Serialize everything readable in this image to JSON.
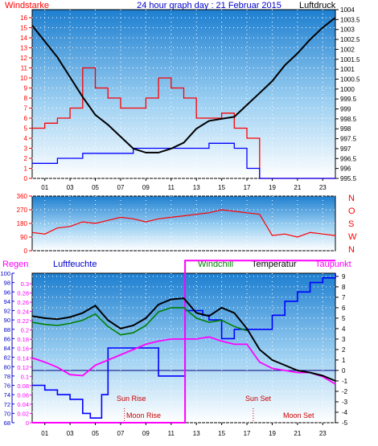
{
  "title": "24 hour graph day : 21 Februar 2015",
  "colors": {
    "wind": "#ff0000",
    "gust": "#ff0000",
    "windavg": "#0000ff",
    "pressure": "#000000",
    "humidity": "#0000ff",
    "windchill": "#008000",
    "temperature": "#000000",
    "dewpoint": "#ff00ff",
    "axisBlue": "#0000cc",
    "axisRed": "#ff0000",
    "pink": "#ff00ff"
  },
  "x_ticks": [
    "01",
    "03",
    "05",
    "07",
    "09",
    "11",
    "13",
    "15",
    "17",
    "19",
    "21",
    "23"
  ],
  "chart_data": [
    {
      "type": "line",
      "name": "wind-pressure",
      "left_label": "Windstarke",
      "right_label": "Luftdruck",
      "left_ticks": [
        "0",
        "1",
        "2",
        "3",
        "4",
        "5",
        "6",
        "7",
        "8",
        "9",
        "10",
        "11",
        "12",
        "13",
        "14",
        "15",
        "16"
      ],
      "right_ticks": [
        "995.5",
        "996",
        "996.5",
        "997",
        "997.5",
        "998",
        "998.5",
        "999",
        "999.5",
        "1000",
        "1000.5",
        "1001",
        "1001.5",
        "1002",
        "1002.5",
        "1003",
        "1003.5",
        "1004"
      ],
      "ylim_left": [
        0,
        16.8
      ],
      "ylim_right": [
        995.5,
        1004
      ],
      "pressure": {
        "x": [
          0,
          1,
          2,
          3,
          4,
          5,
          6,
          7,
          8,
          9,
          10,
          11,
          12,
          13,
          14,
          15,
          16,
          17,
          18,
          19,
          20,
          21,
          22,
          23,
          24
        ],
        "y": [
          1003.2,
          1002.4,
          1001.6,
          1000.6,
          999.6,
          998.7,
          998.2,
          997.6,
          997,
          996.8,
          996.8,
          997,
          997.3,
          998,
          998.4,
          998.5,
          998.6,
          999.2,
          999.8,
          1000.4,
          1001.2,
          1001.8,
          1002.5,
          1003.1,
          1003.6
        ]
      },
      "wind_avg": {
        "x": [
          0,
          2,
          4,
          6,
          8,
          10,
          12,
          13,
          14,
          16,
          17,
          18,
          24
        ],
        "y": [
          1.5,
          2,
          2.5,
          2.5,
          3,
          3,
          3,
          3,
          3.5,
          3,
          1,
          0,
          0
        ]
      },
      "gust": {
        "x": [
          0,
          1,
          2,
          3,
          4,
          5,
          6,
          7,
          8,
          9,
          10,
          11,
          12,
          13,
          14,
          15,
          16,
          17,
          18,
          24
        ],
        "y": [
          5,
          5.5,
          6,
          7,
          11,
          9,
          8,
          7,
          7,
          8,
          10,
          9,
          8,
          6,
          6,
          6.5,
          5,
          4,
          0,
          0
        ]
      }
    },
    {
      "type": "scatter",
      "name": "wind-direction",
      "left_ticks": [
        "0",
        "90",
        "180",
        "270",
        "360"
      ],
      "right_letters": [
        "N",
        "W",
        "S",
        "O",
        "N"
      ],
      "ylim": [
        0,
        360
      ],
      "direction": {
        "x": [
          0,
          1,
          2,
          3,
          4,
          5,
          6,
          7,
          8,
          9,
          10,
          11,
          12,
          13,
          14,
          15,
          16,
          17,
          18,
          19,
          20,
          21,
          22,
          23,
          24
        ],
        "y": [
          120,
          110,
          150,
          160,
          190,
          180,
          200,
          220,
          210,
          190,
          210,
          220,
          230,
          240,
          250,
          270,
          260,
          250,
          240,
          100,
          110,
          90,
          120,
          110,
          100
        ]
      }
    },
    {
      "type": "line",
      "name": "temperature-humidity",
      "labels": {
        "regen": "Regen",
        "luftfeuchte": "Luftfeuchte",
        "windchill": "Windchill",
        "temperatur": "Temperatur",
        "taupunkt": "Taupunkt"
      },
      "hum_ticks": [
        "68",
        "70",
        "72",
        "74",
        "76",
        "78",
        "80",
        "82",
        "84",
        "86",
        "88",
        "90",
        "92",
        "94",
        "96",
        "98",
        "100"
      ],
      "rain_ticks": [
        "0",
        "0.02",
        "0.04",
        "0.06",
        "0.08",
        "0.1",
        "0.12",
        "0.14",
        "0.16",
        "0.18",
        "0.2",
        "0.22",
        "0.24",
        "0.26",
        "0.28",
        "0.3"
      ],
      "temp_ticks": [
        "-5",
        "-4",
        "-3",
        "-2",
        "-1",
        "0",
        "1",
        "2",
        "3",
        "4",
        "5",
        "6",
        "7",
        "8",
        "9"
      ],
      "ylim_temp": [
        -5,
        9.3
      ],
      "ylim_hum": [
        68,
        100
      ],
      "annotations": {
        "sunrise": "Sun Rise",
        "moonrise": "Moon Rise",
        "sunset": "Sun Set",
        "moonset": "Moon Set"
      },
      "temperature": {
        "x": [
          0,
          1,
          2,
          3,
          4,
          5,
          6,
          7,
          8,
          9,
          10,
          11,
          12,
          13,
          14,
          15,
          16,
          17,
          18,
          19,
          20,
          21,
          22,
          23,
          24
        ],
        "y": [
          5.2,
          5,
          4.9,
          5.1,
          5.5,
          6.2,
          4.8,
          4,
          4.3,
          5,
          6.3,
          6.8,
          6.9,
          5.5,
          5.2,
          6,
          5.5,
          4,
          2,
          1,
          0.5,
          0,
          -0.2,
          -0.5,
          -1
        ]
      },
      "windchill": {
        "x": [
          0,
          1,
          2,
          3,
          4,
          5,
          6,
          7,
          8,
          9,
          10,
          11,
          12,
          13,
          14,
          15,
          16,
          17
        ],
        "y": [
          4.6,
          4.4,
          4.3,
          4.5,
          4.8,
          5.4,
          4.2,
          3.4,
          3.6,
          4.3,
          5.6,
          6,
          6,
          5,
          4.6,
          4.8,
          4.2,
          3.8
        ]
      },
      "dewpoint": {
        "x": [
          0,
          1,
          2,
          3,
          4,
          5,
          6,
          7,
          8,
          9,
          10,
          11,
          12,
          13,
          14,
          15,
          16,
          17,
          18,
          19,
          20,
          21,
          22,
          23,
          24
        ],
        "y": [
          1.2,
          0.8,
          0.3,
          -0.4,
          -0.5,
          0.5,
          1,
          1.5,
          2,
          2.5,
          2.8,
          3,
          3,
          3,
          3.2,
          2.8,
          2.5,
          2.5,
          0.8,
          0.2,
          0,
          -0.2,
          -0.2,
          -0.6,
          -1.3
        ]
      },
      "humidity": {
        "x": [
          0,
          1,
          2,
          3,
          4,
          4.6,
          5.5,
          6,
          7,
          8,
          9,
          10,
          11,
          12,
          12.1,
          13,
          13.5,
          14,
          15,
          16,
          17,
          18,
          19,
          20,
          21,
          22,
          23,
          24
        ],
        "y": [
          76,
          75,
          74,
          73,
          70,
          69,
          74,
          84,
          84,
          84,
          84,
          78,
          78,
          78,
          92,
          92,
          91,
          90,
          86,
          88,
          88,
          88,
          91,
          94,
          96,
          98,
          99,
          100
        ]
      },
      "rain": {
        "x": [
          0,
          12.1,
          12.1,
          24
        ],
        "y": [
          0,
          0,
          0.35,
          0.35
        ]
      }
    }
  ]
}
